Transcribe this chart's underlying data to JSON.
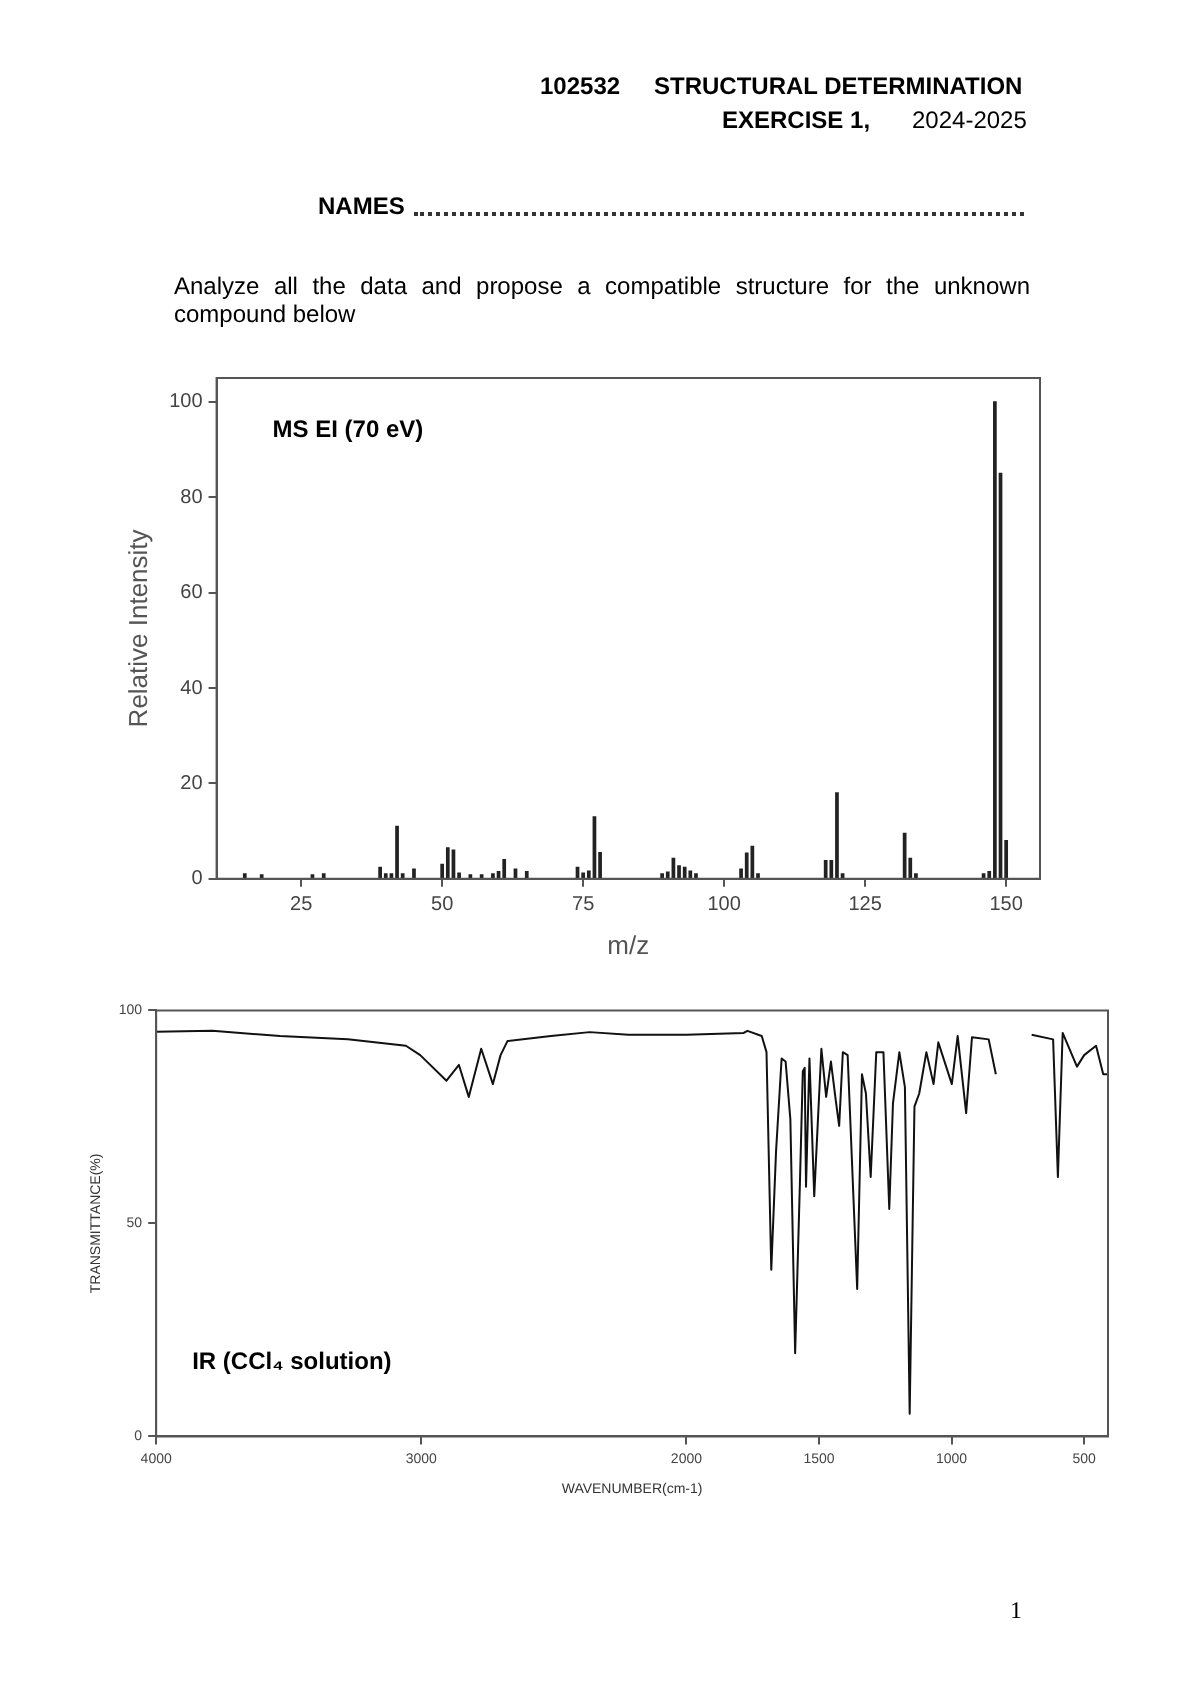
{
  "chart_data": [
    {
      "type": "bar",
      "title": "MS EI (70 eV)",
      "xlabel": "m/z",
      "ylabel": "Relative Intensity",
      "color": "#222222",
      "annotations": [
        "102532",
        "STRUCTURAL DETERMINATION",
        "EXERCISE 1,",
        "2024-2025",
        "NAMES",
        "Analyze all the data and propose a compatible structure for the unknown compound below",
        "1"
      ],
      "x": [
        15,
        18,
        27,
        29,
        39,
        40,
        41,
        42,
        43,
        45,
        50,
        51,
        52,
        53,
        55,
        57,
        59,
        60,
        61,
        63,
        65,
        74,
        75,
        76,
        77,
        78,
        89,
        90,
        91,
        92,
        93,
        94,
        95,
        103,
        104,
        105,
        106,
        118,
        119,
        120,
        121,
        132,
        133,
        134,
        146,
        147,
        148,
        149,
        150
      ],
      "values": [
        1,
        0.8,
        0.8,
        1,
        2.4,
        1,
        1,
        11,
        1,
        2,
        3,
        6.5,
        6,
        1.2,
        0.8,
        0.8,
        1,
        1.5,
        4,
        2,
        1.5,
        2.4,
        1.2,
        1.6,
        13,
        5.5,
        1,
        1.4,
        4.3,
        2.7,
        2.4,
        1.6,
        1,
        2,
        5.4,
        6.8,
        1,
        3.8,
        3.8,
        18,
        1,
        9.5,
        4.3,
        1,
        1,
        1.5,
        100,
        85,
        8
      ],
      "xlim": [
        10,
        156
      ],
      "xticks": [
        25,
        50,
        75,
        100,
        125,
        150
      ],
      "ylim": [
        0,
        105
      ],
      "yticks": [
        0,
        20,
        40,
        60,
        80,
        100
      ]
    },
    {
      "type": "line",
      "title": "IR (CCl₄ solution)",
      "xlabel": "WAVENUMBER(cm-1)",
      "ylabel": "TRANSMITTANCE(%)",
      "color": "#111111",
      "marker": "none",
      "x": [
        4000,
        3788,
        3533,
        3277,
        3058,
        3004,
        2905,
        2858,
        2821,
        2774,
        2730,
        2701,
        2675,
        2511,
        2365,
        2219,
        2000,
        1784,
        1770,
        1716,
        1698,
        1680,
        1662,
        1641,
        1626,
        1608,
        1590,
        1572,
        1561,
        1554,
        1549,
        1536,
        1518,
        1491,
        1473,
        1455,
        1437,
        1424,
        1410,
        1392,
        1356,
        1338,
        1323,
        1305,
        1284,
        1257,
        1235,
        1221,
        1197,
        1176,
        1158,
        1140,
        1122,
        1095,
        1068,
        1050,
        999,
        977,
        945,
        923,
        860,
        833,
        760,
        698,
        617,
        599,
        581,
        527,
        500,
        455,
        428,
        410
      ],
      "values": [
        95,
        95.2,
        94,
        93.2,
        91.7,
        89.5,
        83.5,
        87.2,
        79.7,
        91,
        82.7,
        89.5,
        92.8,
        94,
        94.9,
        94.3,
        94.3,
        94.7,
        95.2,
        94,
        90.2,
        39.1,
        66.9,
        88.7,
        88,
        74.4,
        19.5,
        59.4,
        85.7,
        86.5,
        58.6,
        88.7,
        56.4,
        91,
        79.7,
        88,
        79,
        72.9,
        90.2,
        89.5,
        34.6,
        85,
        80.5,
        60.9,
        90.2,
        90.2,
        53.4,
        78.2,
        90.2,
        82,
        5.3,
        77.4,
        80.5,
        90.2,
        82.7,
        92.5,
        82.7,
        94,
        75.9,
        93.7,
        93.2,
        85,
        null,
        94.3,
        93.2,
        60.9,
        94.7,
        86.8,
        89.5,
        91.7,
        85,
        85
      ],
      "xlim": [
        4000,
        410
      ],
      "xticks": [
        4000,
        3000,
        2000,
        1500,
        1000,
        500
      ],
      "ylim": [
        0,
        100
      ],
      "yticks": [
        0,
        50,
        100
      ]
    }
  ]
}
